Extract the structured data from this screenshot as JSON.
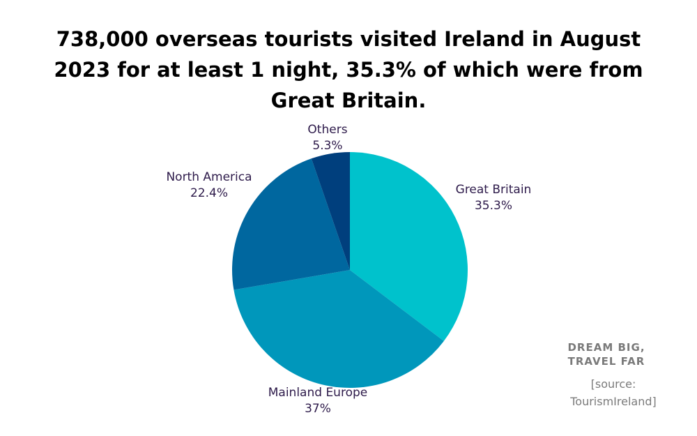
{
  "chart_data": {
    "type": "pie",
    "title": "738,000 overseas tourists visited Ireland in August 2023 for at least 1 night, 35.3% of which were from Great Britain.",
    "slices": [
      {
        "label": "Great Britain",
        "value": 35.3,
        "value_label": "35.3%",
        "color": "#00c2cc"
      },
      {
        "label": "Mainland Europe",
        "value": 37,
        "value_label": "37%",
        "color": "#0097bb"
      },
      {
        "label": "North America",
        "value": 22.4,
        "value_label": "22.4%",
        "color": "#00679f"
      },
      {
        "label": "Others",
        "value": 5.3,
        "value_label": "5.3%",
        "color": "#003f7d"
      }
    ],
    "legend": "none"
  },
  "branding": {
    "line1": "DREAM BIG,",
    "line2": "TRAVEL FAR"
  },
  "source": {
    "line1": "[source:",
    "line2": "TourismIreland]"
  }
}
